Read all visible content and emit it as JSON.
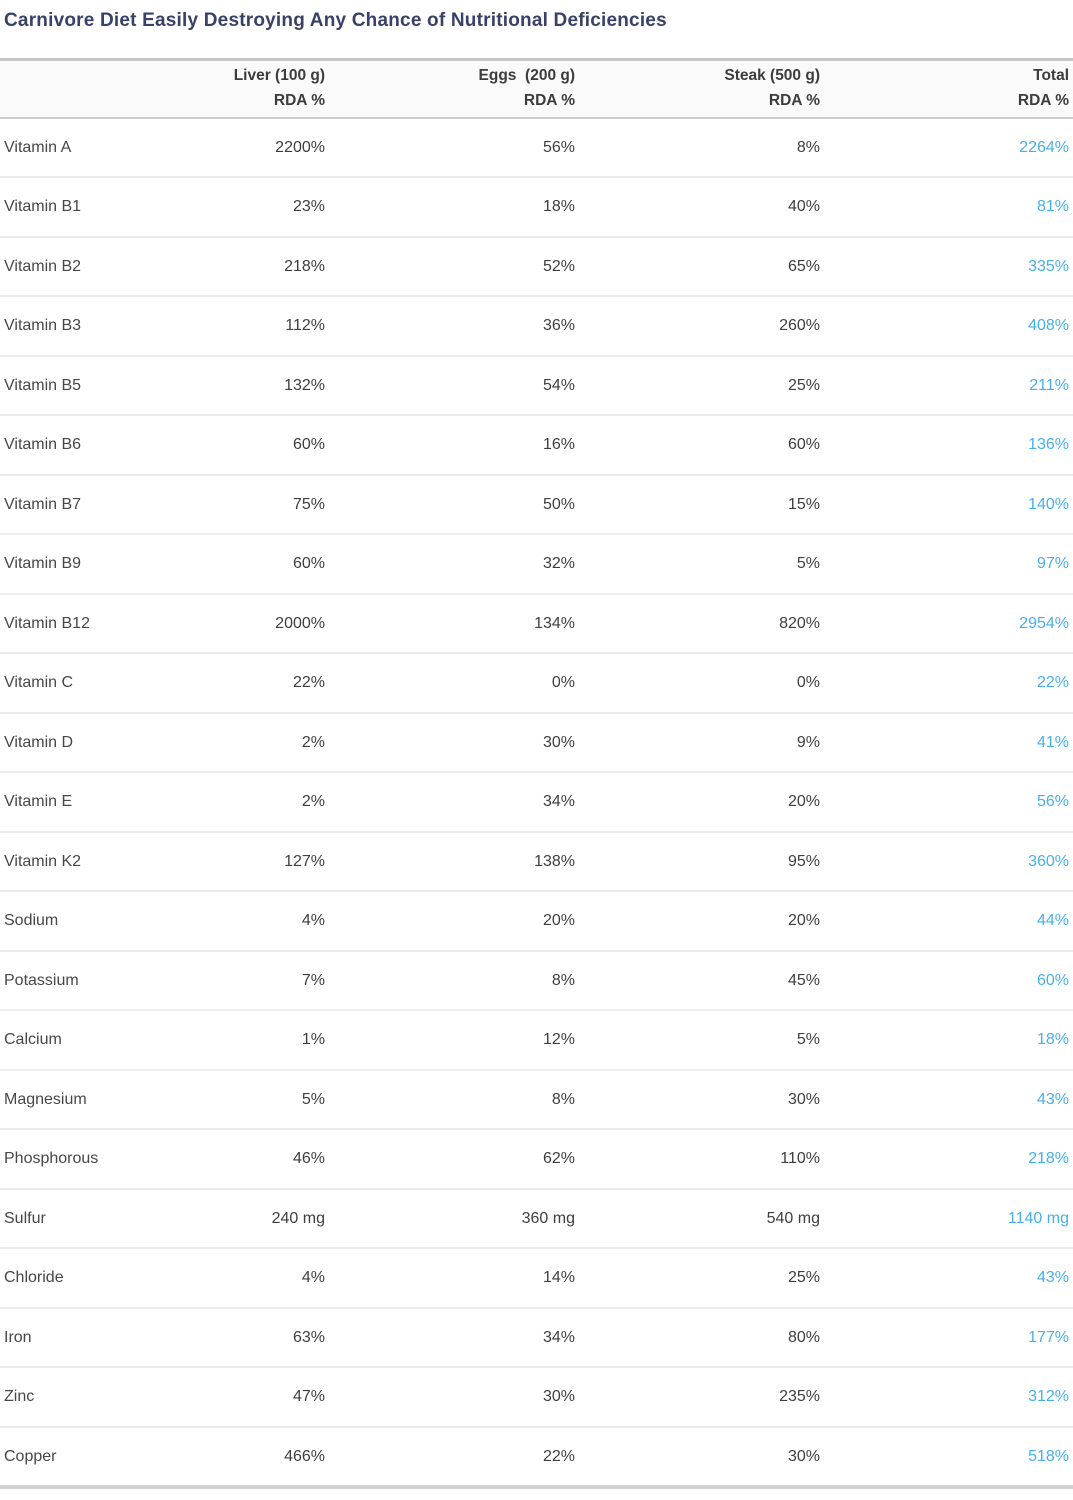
{
  "title": "Carnivore Diet Easily Destroying Any Chance of Nutritional Deficiencies",
  "colors": {
    "title_navy": "#3a4168",
    "total_accent": "#47b0e8",
    "body_text": "#3e3e3e"
  },
  "chart_data": {
    "type": "table",
    "title": "Carnivore Diet Easily Destroying Any Chance of Nutritional Deficiencies",
    "columns": [
      {
        "line1": "Liver (100 g)",
        "line2": "RDA %"
      },
      {
        "line1": "Eggs  (200 g)",
        "line2": "RDA %"
      },
      {
        "line1": "Steak (500 g)",
        "line2": "RDA %"
      },
      {
        "line1": "Total",
        "line2": "RDA %"
      }
    ],
    "rows": [
      {
        "label": "Vitamin A",
        "liver": "2200%",
        "eggs": "56%",
        "steak": "8%",
        "total": "2264%"
      },
      {
        "label": "Vitamin B1",
        "liver": "23%",
        "eggs": "18%",
        "steak": "40%",
        "total": "81%"
      },
      {
        "label": "Vitamin B2",
        "liver": "218%",
        "eggs": "52%",
        "steak": "65%",
        "total": "335%"
      },
      {
        "label": "Vitamin B3",
        "liver": "112%",
        "eggs": "36%",
        "steak": "260%",
        "total": "408%"
      },
      {
        "label": "Vitamin B5",
        "liver": "132%",
        "eggs": "54%",
        "steak": "25%",
        "total": "211%"
      },
      {
        "label": "Vitamin B6",
        "liver": "60%",
        "eggs": "16%",
        "steak": "60%",
        "total": "136%"
      },
      {
        "label": "Vitamin B7",
        "liver": "75%",
        "eggs": "50%",
        "steak": "15%",
        "total": "140%"
      },
      {
        "label": "Vitamin B9",
        "liver": "60%",
        "eggs": "32%",
        "steak": "5%",
        "total": "97%"
      },
      {
        "label": "Vitamin B12",
        "liver": "2000%",
        "eggs": "134%",
        "steak": "820%",
        "total": "2954%"
      },
      {
        "label": "Vitamin C",
        "liver": "22%",
        "eggs": "0%",
        "steak": "0%",
        "total": "22%"
      },
      {
        "label": "Vitamin D",
        "liver": "2%",
        "eggs": "30%",
        "steak": "9%",
        "total": "41%"
      },
      {
        "label": "Vitamin E",
        "liver": "2%",
        "eggs": "34%",
        "steak": "20%",
        "total": "56%"
      },
      {
        "label": "Vitamin K2",
        "liver": "127%",
        "eggs": "138%",
        "steak": "95%",
        "total": "360%"
      },
      {
        "label": "Sodium",
        "liver": "4%",
        "eggs": "20%",
        "steak": "20%",
        "total": "44%"
      },
      {
        "label": "Potassium",
        "liver": "7%",
        "eggs": "8%",
        "steak": "45%",
        "total": "60%"
      },
      {
        "label": "Calcium",
        "liver": "1%",
        "eggs": "12%",
        "steak": "5%",
        "total": "18%"
      },
      {
        "label": "Magnesium",
        "liver": "5%",
        "eggs": "8%",
        "steak": "30%",
        "total": "43%"
      },
      {
        "label": "Phosphorous",
        "liver": "46%",
        "eggs": "62%",
        "steak": "110%",
        "total": "218%"
      },
      {
        "label": "Sulfur",
        "liver": "240 mg",
        "eggs": "360 mg",
        "steak": "540 mg",
        "total": "1140 mg"
      },
      {
        "label": "Chloride",
        "liver": "4%",
        "eggs": "14%",
        "steak": "25%",
        "total": "43%"
      },
      {
        "label": "Iron",
        "liver": "63%",
        "eggs": "34%",
        "steak": "80%",
        "total": "177%"
      },
      {
        "label": "Zinc",
        "liver": "47%",
        "eggs": "30%",
        "steak": "235%",
        "total": "312%"
      },
      {
        "label": "Copper",
        "liver": "466%",
        "eggs": "22%",
        "steak": "30%",
        "total": "518%"
      }
    ]
  }
}
